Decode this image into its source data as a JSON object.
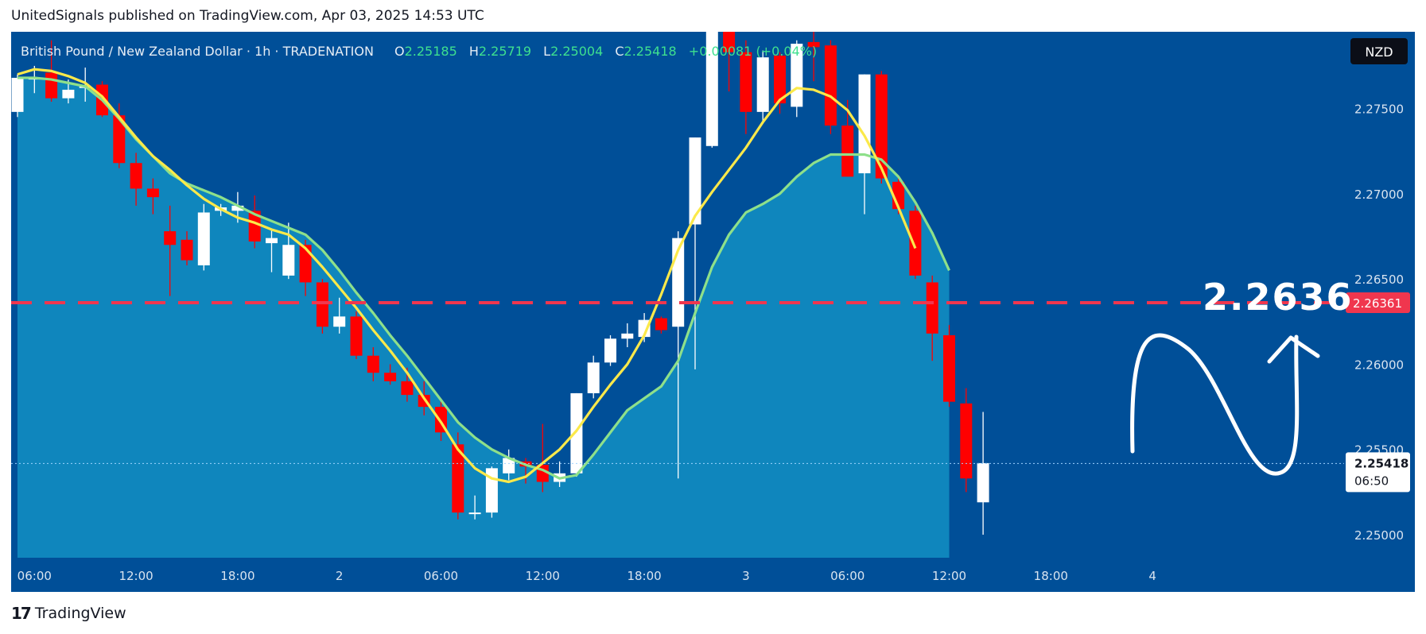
{
  "header": {
    "publisher": "UnitedSignals published on TradingView.com, Apr 03, 2025 14:53 UTC"
  },
  "legend": {
    "symbol": "British Pound / New Zealand Dollar · 1h · TRADENATION",
    "o_label": "O",
    "o": "2.25185",
    "h_label": "H",
    "h": "2.25719",
    "l_label": "L",
    "l": "2.25004",
    "c_label": "C",
    "c": "2.25418",
    "change": "+0.00081 (+0.04%)"
  },
  "currency_badge": "NZD",
  "price_tags": {
    "target": "2.26361",
    "last": "2.25418",
    "countdown": "06:50"
  },
  "annotation": {
    "target_text": "2.2636"
  },
  "footer": {
    "brand": "TradingView",
    "logo_glyph": "17"
  },
  "colors": {
    "background": "#004f98",
    "band_fill": "#0f86bd",
    "up_candle": "#ffffff",
    "down_candle": "#ff0000",
    "ema_fast": "#fbe94a",
    "ema_slow": "#8ee08a",
    "target_line": "#f0364e"
  },
  "chart_data": {
    "type": "candlestick",
    "y_axis": {
      "ticks": [
        2.25,
        2.255,
        2.26,
        2.265,
        2.27,
        2.275
      ],
      "tick_labels": [
        "2.25000",
        "2.25500",
        "2.26000",
        "2.26500",
        "2.27000",
        "2.27500"
      ],
      "ylim": [
        2.24865,
        2.2795
      ]
    },
    "x_axis": {
      "tick_labels": [
        "06:00",
        "12:00",
        "18:00",
        "2",
        "06:00",
        "12:00",
        "18:00",
        "3",
        "06:00",
        "12:00",
        "18:00",
        "4"
      ],
      "tick_index": [
        1,
        7,
        13,
        19,
        25,
        31,
        37,
        43,
        49,
        55,
        61,
        67
      ]
    },
    "target_level": 2.26361,
    "last_price": 2.25418,
    "candles": [
      {
        "o": 2.2748,
        "h": 2.277,
        "l": 2.2745,
        "c": 2.2768
      },
      {
        "o": 2.2767,
        "h": 2.2775,
        "l": 2.2759,
        "c": 2.2768
      },
      {
        "o": 2.2771,
        "h": 2.279,
        "l": 2.2754,
        "c": 2.2756
      },
      {
        "o": 2.2756,
        "h": 2.2767,
        "l": 2.2753,
        "c": 2.2761
      },
      {
        "o": 2.2763,
        "h": 2.2774,
        "l": 2.2754,
        "c": 2.2763
      },
      {
        "o": 2.2764,
        "h": 2.2766,
        "l": 2.2745,
        "c": 2.2746
      },
      {
        "o": 2.2746,
        "h": 2.2753,
        "l": 2.2715,
        "c": 2.2718
      },
      {
        "o": 2.2718,
        "h": 2.2724,
        "l": 2.2693,
        "c": 2.2703
      },
      {
        "o": 2.2703,
        "h": 2.2709,
        "l": 2.2688,
        "c": 2.2698
      },
      {
        "o": 2.2678,
        "h": 2.2693,
        "l": 2.264,
        "c": 2.267
      },
      {
        "o": 2.2673,
        "h": 2.2678,
        "l": 2.2658,
        "c": 2.2661
      },
      {
        "o": 2.2658,
        "h": 2.2694,
        "l": 2.2655,
        "c": 2.2689
      },
      {
        "o": 2.269,
        "h": 2.2694,
        "l": 2.2687,
        "c": 2.2692
      },
      {
        "o": 2.269,
        "h": 2.2701,
        "l": 2.2683,
        "c": 2.2693
      },
      {
        "o": 2.269,
        "h": 2.2699,
        "l": 2.2668,
        "c": 2.2672
      },
      {
        "o": 2.2671,
        "h": 2.2679,
        "l": 2.2654,
        "c": 2.2674
      },
      {
        "o": 2.2652,
        "h": 2.2683,
        "l": 2.265,
        "c": 2.267
      },
      {
        "o": 2.267,
        "h": 2.2673,
        "l": 2.264,
        "c": 2.2648
      },
      {
        "o": 2.2648,
        "h": 2.265,
        "l": 2.2618,
        "c": 2.2622
      },
      {
        "o": 2.2622,
        "h": 2.2639,
        "l": 2.2618,
        "c": 2.2628
      },
      {
        "o": 2.2628,
        "h": 2.2631,
        "l": 2.2603,
        "c": 2.2605
      },
      {
        "o": 2.2605,
        "h": 2.261,
        "l": 2.259,
        "c": 2.2595
      },
      {
        "o": 2.2595,
        "h": 2.26,
        "l": 2.2588,
        "c": 2.259
      },
      {
        "o": 2.259,
        "h": 2.2598,
        "l": 2.2578,
        "c": 2.2582
      },
      {
        "o": 2.2582,
        "h": 2.259,
        "l": 2.257,
        "c": 2.2575
      },
      {
        "o": 2.2575,
        "h": 2.258,
        "l": 2.2555,
        "c": 2.256
      },
      {
        "o": 2.2553,
        "h": 2.256,
        "l": 2.2509,
        "c": 2.2513
      },
      {
        "o": 2.2513,
        "h": 2.2523,
        "l": 2.2509,
        "c": 2.2513
      },
      {
        "o": 2.2513,
        "h": 2.254,
        "l": 2.251,
        "c": 2.2539
      },
      {
        "o": 2.2536,
        "h": 2.255,
        "l": 2.2532,
        "c": 2.2545
      },
      {
        "o": 2.2543,
        "h": 2.2545,
        "l": 2.253,
        "c": 2.254
      },
      {
        "o": 2.2541,
        "h": 2.2565,
        "l": 2.2525,
        "c": 2.2531
      },
      {
        "o": 2.2531,
        "h": 2.2543,
        "l": 2.2528,
        "c": 2.2536
      },
      {
        "o": 2.2536,
        "h": 2.2583,
        "l": 2.2534,
        "c": 2.2583
      },
      {
        "o": 2.2583,
        "h": 2.2605,
        "l": 2.258,
        "c": 2.2601
      },
      {
        "o": 2.2601,
        "h": 2.2617,
        "l": 2.2599,
        "c": 2.2615
      },
      {
        "o": 2.2615,
        "h": 2.2624,
        "l": 2.261,
        "c": 2.2618
      },
      {
        "o": 2.2616,
        "h": 2.263,
        "l": 2.2613,
        "c": 2.2626
      },
      {
        "o": 2.2627,
        "h": 2.2628,
        "l": 2.2618,
        "c": 2.262
      },
      {
        "o": 2.2622,
        "h": 2.2678,
        "l": 2.2533,
        "c": 2.2674
      },
      {
        "o": 2.2682,
        "h": 2.2733,
        "l": 2.2597,
        "c": 2.2733
      },
      {
        "o": 2.2728,
        "h": 2.28,
        "l": 2.2727,
        "c": 2.2795
      },
      {
        "o": 2.2795,
        "h": 2.28,
        "l": 2.276,
        "c": 2.2783
      },
      {
        "o": 2.2783,
        "h": 2.279,
        "l": 2.2735,
        "c": 2.2748
      },
      {
        "o": 2.2748,
        "h": 2.2784,
        "l": 2.2741,
        "c": 2.278
      },
      {
        "o": 2.2781,
        "h": 2.2783,
        "l": 2.2747,
        "c": 2.2753
      },
      {
        "o": 2.2751,
        "h": 2.279,
        "l": 2.2745,
        "c": 2.2788
      },
      {
        "o": 2.2789,
        "h": 2.2801,
        "l": 2.2766,
        "c": 2.2786
      },
      {
        "o": 2.2787,
        "h": 2.279,
        "l": 2.2735,
        "c": 2.274
      },
      {
        "o": 2.274,
        "h": 2.2755,
        "l": 2.271,
        "c": 2.271
      },
      {
        "o": 2.2712,
        "h": 2.277,
        "l": 2.2688,
        "c": 2.277
      },
      {
        "o": 2.277,
        "h": 2.2772,
        "l": 2.2706,
        "c": 2.2709
      },
      {
        "o": 2.2707,
        "h": 2.2711,
        "l": 2.2688,
        "c": 2.2691
      },
      {
        "o": 2.269,
        "h": 2.2693,
        "l": 2.265,
        "c": 2.2652
      },
      {
        "o": 2.2648,
        "h": 2.2652,
        "l": 2.2602,
        "c": 2.2618
      },
      {
        "o": 2.2617,
        "h": 2.2623,
        "l": 2.2575,
        "c": 2.2578
      },
      {
        "o": 2.2577,
        "h": 2.2586,
        "l": 2.2525,
        "c": 2.2533
      },
      {
        "o": 2.2519,
        "h": 2.2572,
        "l": 2.25,
        "c": 2.2542
      }
    ],
    "ema_fast": [
      2.277,
      2.2773,
      2.2772,
      2.2769,
      2.2765,
      2.2757,
      2.2745,
      2.2733,
      2.2722,
      2.2714,
      2.2705,
      2.2697,
      2.2691,
      2.2686,
      2.2683,
      2.2679,
      2.2676,
      2.2668,
      2.2657,
      2.2645,
      2.2633,
      2.262,
      2.2608,
      2.2595,
      2.258,
      2.2566,
      2.255,
      2.2539,
      2.2533,
      2.2531,
      2.2534,
      2.2542,
      2.255,
      2.2561,
      2.2575,
      2.2588,
      2.26,
      2.2617,
      2.2641,
      2.2667,
      2.2687,
      2.2701,
      2.2714,
      2.2727,
      2.2742,
      2.2755,
      2.2762,
      2.2761,
      2.2757,
      2.2749,
      2.2734,
      2.2715,
      2.2692,
      2.2668
    ],
    "ema_slow": [
      2.2768,
      2.2768,
      2.2767,
      2.2765,
      2.2763,
      2.2755,
      2.2744,
      2.2732,
      2.2722,
      2.2712,
      2.2706,
      2.2702,
      2.2698,
      2.2693,
      2.2688,
      2.2684,
      2.268,
      2.2676,
      2.2667,
      2.2655,
      2.2642,
      2.263,
      2.2617,
      2.2605,
      2.2592,
      2.2579,
      2.2566,
      2.2557,
      2.255,
      2.2545,
      2.2541,
      2.2538,
      2.2533,
      2.2535,
      2.2547,
      2.256,
      2.2573,
      2.258,
      2.2587,
      2.2602,
      2.263,
      2.2657,
      2.2676,
      2.2689,
      2.2694,
      2.27,
      2.271,
      2.2718,
      2.2723,
      2.2723,
      2.2723,
      2.272,
      2.271,
      2.2695,
      2.2677,
      2.2655
    ]
  }
}
